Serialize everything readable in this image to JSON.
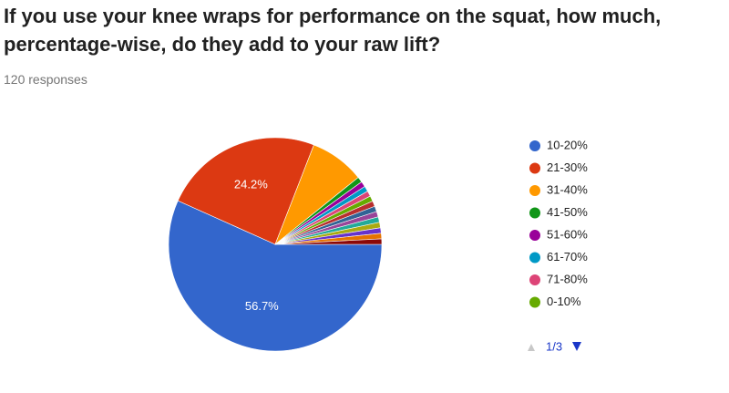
{
  "chart_data": {
    "type": "pie",
    "title": "If you use your knee wraps for performance on the squat, how much, percentage-wise, do they add to your raw lift?",
    "subtitle": "120 responses",
    "categories": [
      "10-20%",
      "21-30%",
      "31-40%",
      "41-50%",
      "51-60%",
      "61-70%",
      "71-80%",
      "0-10%",
      null,
      null,
      null,
      null,
      null,
      null,
      null,
      null
    ],
    "values": [
      56.7,
      24.2,
      8.3,
      0.83,
      0.83,
      0.83,
      0.83,
      0.83,
      0.83,
      0.83,
      0.83,
      0.83,
      0.83,
      0.83,
      0.83,
      0.83
    ],
    "value_labels": [
      "56.7%",
      "24.2%",
      null,
      null,
      null,
      null,
      null,
      null,
      null,
      null,
      null,
      null,
      null,
      null,
      null,
      null
    ],
    "colors": [
      "#3366cc",
      "#dc3912",
      "#ff9900",
      "#109618",
      "#990099",
      "#0099c6",
      "#dd4477",
      "#66aa00",
      "#b82e2e",
      "#316395",
      "#994499",
      "#22aa99",
      "#aaaa11",
      "#6633cc",
      "#e67300",
      "#8b0707"
    ],
    "legend_page": "1/3"
  }
}
